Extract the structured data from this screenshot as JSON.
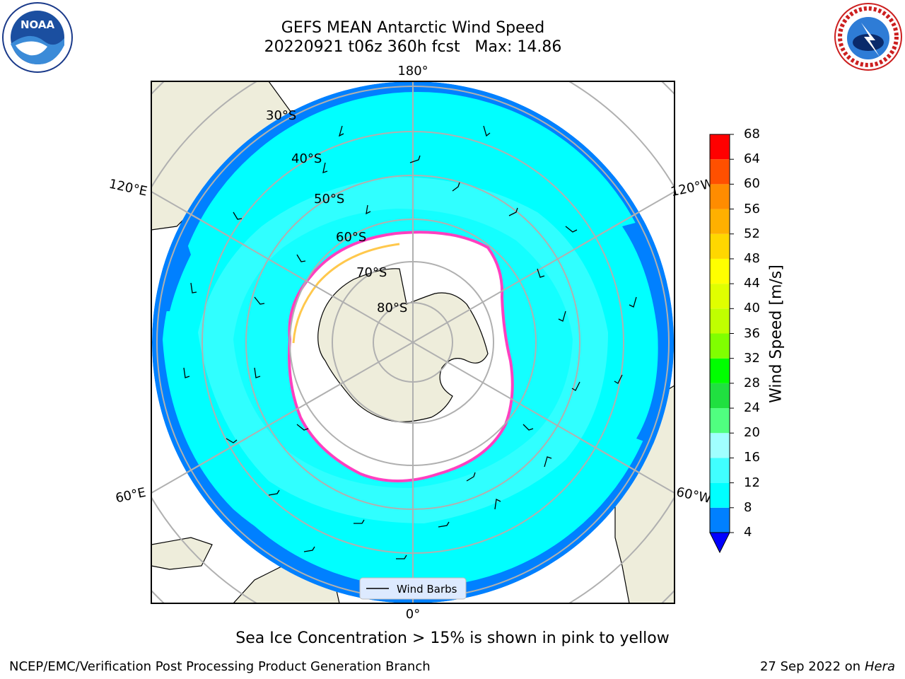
{
  "title": {
    "line1": "GEFS MEAN Antarctic Wind Speed",
    "line2": "20220921 t06z 360h fcst   Max: 14.86"
  },
  "map": {
    "projection": "south-polar-stereographic",
    "latitude_labels": [
      "30°S",
      "40°S",
      "50°S",
      "60°S",
      "70°S",
      "80°S"
    ],
    "longitude_labels": {
      "top": "180°",
      "bottom": "0°",
      "upper_left": "120°E",
      "upper_right": "120°W",
      "lower_left": "60°E",
      "lower_right": "60°W"
    },
    "legend_label": "Wind Barbs"
  },
  "colorbar": {
    "label": "Wind Speed [m/s]",
    "ticks": [
      "4",
      "8",
      "12",
      "16",
      "20",
      "24",
      "28",
      "32",
      "36",
      "40",
      "44",
      "48",
      "52",
      "56",
      "60",
      "64",
      "68"
    ],
    "colors": [
      "#0080ff",
      "#00ffff",
      "#40ffff",
      "#a0ffff",
      "#50ff80",
      "#20e040",
      "#00ff00",
      "#80ff00",
      "#c0ff00",
      "#e0ff00",
      "#ffff00",
      "#ffd700",
      "#ffb000",
      "#ff8c00",
      "#ff5000",
      "#ff0000"
    ],
    "under_color": "#0000ff"
  },
  "footnote": "Sea Ice Concentration > 15% is shown in pink to yellow",
  "credit": "NCEP/EMC/Verification Post Processing Product Generation Branch",
  "date": {
    "text": "27 Sep 2022 on",
    "machine": "Hera"
  },
  "logos": {
    "left": "NOAA",
    "right": "NATIONAL WEATHER SERVICE"
  }
}
